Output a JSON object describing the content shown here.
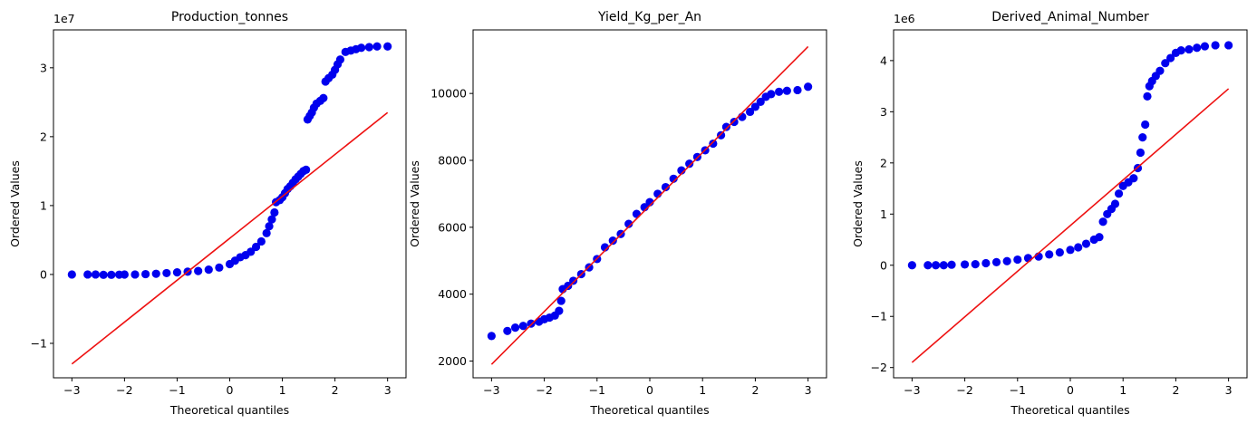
{
  "chart_data": [
    {
      "type": "scatter",
      "title": "Production_tonnes",
      "xlabel": "Theoretical quantiles",
      "ylabel": "Ordered Values",
      "y_offset_label": "1e7",
      "xlim": [
        -3.35,
        3.35
      ],
      "ylim": [
        -1.5,
        3.55
      ],
      "xticks": [
        -3,
        -2,
        -1,
        0,
        1,
        2,
        3
      ],
      "xtick_labels": [
        "−3",
        "−2",
        "−1",
        "0",
        "1",
        "2",
        "3"
      ],
      "yticks": [
        -1,
        0,
        1,
        2,
        3
      ],
      "ytick_labels": [
        "−1",
        "0",
        "1",
        "2",
        "3"
      ],
      "points": [
        [
          -3.0,
          0.0
        ],
        [
          -2.7,
          0.0
        ],
        [
          -2.55,
          0.0
        ],
        [
          -2.4,
          -0.005
        ],
        [
          -2.25,
          -0.005
        ],
        [
          -2.1,
          -0.003
        ],
        [
          -2.0,
          -0.001
        ],
        [
          -1.8,
          0.0
        ],
        [
          -1.6,
          0.005
        ],
        [
          -1.4,
          0.01
        ],
        [
          -1.2,
          0.02
        ],
        [
          -1.0,
          0.03
        ],
        [
          -0.8,
          0.04
        ],
        [
          -0.6,
          0.05
        ],
        [
          -0.4,
          0.07
        ],
        [
          -0.2,
          0.1
        ],
        [
          0.0,
          0.15
        ],
        [
          0.1,
          0.2
        ],
        [
          0.2,
          0.25
        ],
        [
          0.3,
          0.28
        ],
        [
          0.4,
          0.33
        ],
        [
          0.5,
          0.4
        ],
        [
          0.6,
          0.48
        ],
        [
          0.7,
          0.6
        ],
        [
          0.75,
          0.7
        ],
        [
          0.8,
          0.8
        ],
        [
          0.85,
          0.9
        ],
        [
          0.88,
          1.05
        ],
        [
          0.95,
          1.08
        ],
        [
          1.0,
          1.12
        ],
        [
          1.05,
          1.18
        ],
        [
          1.1,
          1.24
        ],
        [
          1.15,
          1.28
        ],
        [
          1.2,
          1.33
        ],
        [
          1.25,
          1.38
        ],
        [
          1.3,
          1.42
        ],
        [
          1.35,
          1.46
        ],
        [
          1.4,
          1.5
        ],
        [
          1.45,
          1.52
        ],
        [
          1.48,
          2.25
        ],
        [
          1.52,
          2.3
        ],
        [
          1.56,
          2.35
        ],
        [
          1.6,
          2.42
        ],
        [
          1.65,
          2.48
        ],
        [
          1.72,
          2.52
        ],
        [
          1.78,
          2.56
        ],
        [
          1.82,
          2.8
        ],
        [
          1.88,
          2.85
        ],
        [
          1.95,
          2.9
        ],
        [
          2.0,
          2.97
        ],
        [
          2.05,
          3.05
        ],
        [
          2.1,
          3.12
        ],
        [
          2.2,
          3.23
        ],
        [
          2.3,
          3.25
        ],
        [
          2.4,
          3.27
        ],
        [
          2.5,
          3.29
        ],
        [
          2.65,
          3.3
        ],
        [
          2.8,
          3.31
        ],
        [
          3.0,
          3.31
        ]
      ],
      "fit_line": {
        "x": [
          -3.0,
          3.0
        ],
        "y": [
          -1.3,
          2.35
        ]
      },
      "colors": {
        "points": "#0000ee",
        "line": "#ee1111"
      }
    },
    {
      "type": "scatter",
      "title": "Yield_Kg_per_An",
      "xlabel": "Theoretical quantiles",
      "ylabel": "Ordered Values",
      "y_offset_label": "",
      "xlim": [
        -3.35,
        3.35
      ],
      "ylim": [
        1500,
        11900
      ],
      "xticks": [
        -3,
        -2,
        -1,
        0,
        1,
        2,
        3
      ],
      "xtick_labels": [
        "−3",
        "−2",
        "−1",
        "0",
        "1",
        "2",
        "3"
      ],
      "yticks": [
        2000,
        4000,
        6000,
        8000,
        10000
      ],
      "ytick_labels": [
        "2000",
        "4000",
        "6000",
        "8000",
        "10000"
      ],
      "points": [
        [
          -3.0,
          2750
        ],
        [
          -2.7,
          2900
        ],
        [
          -2.55,
          3000
        ],
        [
          -2.4,
          3050
        ],
        [
          -2.25,
          3120
        ],
        [
          -2.1,
          3180
        ],
        [
          -2.0,
          3250
        ],
        [
          -1.9,
          3300
        ],
        [
          -1.8,
          3360
        ],
        [
          -1.72,
          3500
        ],
        [
          -1.68,
          3800
        ],
        [
          -1.65,
          4150
        ],
        [
          -1.55,
          4250
        ],
        [
          -1.45,
          4400
        ],
        [
          -1.3,
          4600
        ],
        [
          -1.15,
          4800
        ],
        [
          -1.0,
          5050
        ],
        [
          -0.85,
          5400
        ],
        [
          -0.7,
          5600
        ],
        [
          -0.55,
          5800
        ],
        [
          -0.4,
          6100
        ],
        [
          -0.25,
          6400
        ],
        [
          -0.1,
          6600
        ],
        [
          0.0,
          6750
        ],
        [
          0.15,
          7000
        ],
        [
          0.3,
          7200
        ],
        [
          0.45,
          7450
        ],
        [
          0.6,
          7700
        ],
        [
          0.75,
          7900
        ],
        [
          0.9,
          8100
        ],
        [
          1.05,
          8300
        ],
        [
          1.2,
          8500
        ],
        [
          1.35,
          8750
        ],
        [
          1.45,
          9000
        ],
        [
          1.6,
          9150
        ],
        [
          1.75,
          9300
        ],
        [
          1.9,
          9450
        ],
        [
          2.0,
          9600
        ],
        [
          2.1,
          9750
        ],
        [
          2.2,
          9900
        ],
        [
          2.3,
          9980
        ],
        [
          2.45,
          10050
        ],
        [
          2.6,
          10080
        ],
        [
          2.8,
          10100
        ],
        [
          3.0,
          10200
        ]
      ],
      "fit_line": {
        "x": [
          -3.0,
          3.0
        ],
        "y": [
          1900,
          11400
        ]
      },
      "colors": {
        "points": "#0000ee",
        "line": "#ee1111"
      }
    },
    {
      "type": "scatter",
      "title": "Derived_Animal_Number",
      "xlabel": "Theoretical quantiles",
      "ylabel": "Ordered Values",
      "y_offset_label": "1e6",
      "xlim": [
        -3.35,
        3.35
      ],
      "ylim": [
        -2.2,
        4.6
      ],
      "xticks": [
        -3,
        -2,
        -1,
        0,
        1,
        2,
        3
      ],
      "xtick_labels": [
        "−3",
        "−2",
        "−1",
        "0",
        "1",
        "2",
        "3"
      ],
      "yticks": [
        -2,
        -1,
        0,
        1,
        2,
        3,
        4
      ],
      "ytick_labels": [
        "−2",
        "−1",
        "0",
        "1",
        "2",
        "3",
        "4"
      ],
      "points": [
        [
          -3.0,
          0.0
        ],
        [
          -2.7,
          0.0
        ],
        [
          -2.55,
          0.0
        ],
        [
          -2.4,
          0.0
        ],
        [
          -2.25,
          0.01
        ],
        [
          -2.0,
          0.015
        ],
        [
          -1.8,
          0.02
        ],
        [
          -1.6,
          0.04
        ],
        [
          -1.4,
          0.06
        ],
        [
          -1.2,
          0.08
        ],
        [
          -1.0,
          0.11
        ],
        [
          -0.8,
          0.14
        ],
        [
          -0.6,
          0.17
        ],
        [
          -0.4,
          0.21
        ],
        [
          -0.2,
          0.25
        ],
        [
          0.0,
          0.3
        ],
        [
          0.15,
          0.35
        ],
        [
          0.3,
          0.42
        ],
        [
          0.45,
          0.5
        ],
        [
          0.55,
          0.55
        ],
        [
          0.62,
          0.85
        ],
        [
          0.7,
          1.0
        ],
        [
          0.78,
          1.1
        ],
        [
          0.85,
          1.2
        ],
        [
          0.92,
          1.4
        ],
        [
          1.0,
          1.55
        ],
        [
          1.1,
          1.62
        ],
        [
          1.2,
          1.7
        ],
        [
          1.28,
          1.9
        ],
        [
          1.33,
          2.2
        ],
        [
          1.37,
          2.5
        ],
        [
          1.42,
          2.75
        ],
        [
          1.46,
          3.3
        ],
        [
          1.5,
          3.5
        ],
        [
          1.55,
          3.6
        ],
        [
          1.62,
          3.7
        ],
        [
          1.7,
          3.8
        ],
        [
          1.8,
          3.95
        ],
        [
          1.9,
          4.05
        ],
        [
          2.0,
          4.15
        ],
        [
          2.1,
          4.2
        ],
        [
          2.25,
          4.22
        ],
        [
          2.4,
          4.25
        ],
        [
          2.55,
          4.28
        ],
        [
          2.75,
          4.3
        ],
        [
          3.0,
          4.3
        ]
      ],
      "fit_line": {
        "x": [
          -3.0,
          3.0
        ],
        "y": [
          -1.9,
          3.45
        ]
      },
      "colors": {
        "points": "#0000ee",
        "line": "#ee1111"
      }
    }
  ]
}
